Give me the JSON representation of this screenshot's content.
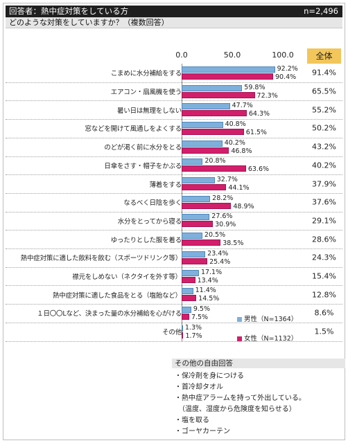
{
  "header": {
    "title": "回答者：熱中症対策をしている方",
    "n": "n=2,496",
    "question": "どのような対策をしていますか？（複数回答）"
  },
  "total_header": "全体",
  "chart_data": {
    "type": "bar",
    "orientation": "horizontal",
    "axis": {
      "ticks": [
        "0.0",
        "50.0",
        "100.0"
      ],
      "xlim": [
        0,
        100
      ]
    },
    "categories": [
      "こまめに水分補給をする",
      "エアコン・扇風機を使う",
      "暑い日は無理をしない",
      "窓などを開けて風通しをよくする",
      "のどが渇く前に水分をとる",
      "日傘をさす・帽子をかぶる",
      "薄着をする",
      "なるべく日陰を歩く",
      "水分をとってから寝る",
      "ゆったりとした服を着る",
      "熱中症対策に適した飲料を飲む（スポーツドリンク等）",
      "襟元をしめない（ネクタイを外す等）",
      "熱中症対策に適した食品をとる（塩飴など）",
      "１日〇〇Lなど、決まった量の水分補給を心がける",
      "その他"
    ],
    "series": [
      {
        "name": "男性（N=1364）",
        "color": "#7fb0dc",
        "values": [
          92.2,
          59.8,
          47.7,
          40.8,
          40.2,
          20.8,
          32.7,
          28.2,
          27.6,
          20.5,
          23.4,
          17.1,
          11.4,
          9.5,
          1.3
        ],
        "labels": [
          "92.2%",
          "59.8%",
          "47.7%",
          "40.8%",
          "40.2%",
          "20.8%",
          "32.7%",
          "28.2%",
          "27.6%",
          "20.5%",
          "23.4%",
          "17.1%",
          "11.4%",
          "9.5%",
          "1.3%"
        ]
      },
      {
        "name": "女性（N=1132）",
        "color": "#d21f6b",
        "values": [
          90.4,
          72.3,
          64.3,
          61.5,
          46.8,
          63.6,
          44.1,
          48.9,
          30.9,
          38.5,
          25.4,
          13.4,
          14.5,
          7.5,
          1.7
        ],
        "labels": [
          "90.4%",
          "72.3%",
          "64.3%",
          "61.5%",
          "46.8%",
          "63.6%",
          "44.1%",
          "48.9%",
          "30.9%",
          "38.5%",
          "25.4%",
          "13.4%",
          "14.5%",
          "7.5%",
          "1.7%"
        ]
      }
    ],
    "totals": [
      "91.4%",
      "65.5%",
      "55.2%",
      "50.2%",
      "43.2%",
      "40.2%",
      "37.9%",
      "37.6%",
      "29.1%",
      "28.6%",
      "24.3%",
      "15.4%",
      "12.8%",
      "8.6%",
      "1.5%"
    ],
    "legend": [
      "男性（N=1364）",
      "女性（N=1132）"
    ]
  },
  "free_answers": {
    "title": "その他の自由回答",
    "items": [
      "・保冷剤を身につける",
      "・首冷却タオル",
      "・熱中症アラームを持って外出している。",
      "　（温度、湿度から危険度を知らせる）",
      "・塩を取る",
      "・ゴーヤカーテン"
    ]
  }
}
